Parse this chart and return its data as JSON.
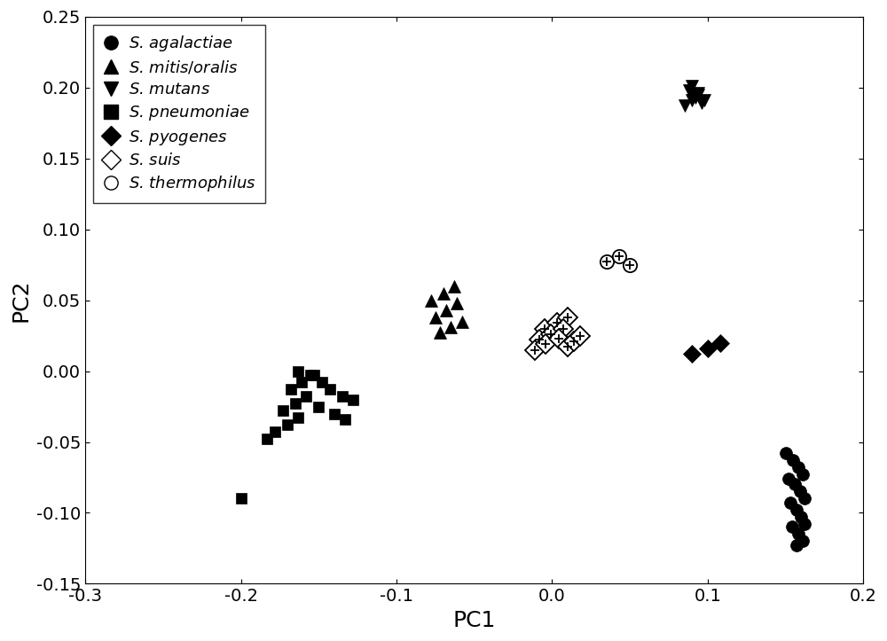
{
  "title": "",
  "xlabel": "PC1",
  "ylabel": "PC2",
  "xlim": [
    -0.3,
    0.2
  ],
  "ylim": [
    -0.15,
    0.25
  ],
  "xticks": [
    -0.3,
    -0.2,
    -0.1,
    0.0,
    0.1,
    0.2
  ],
  "yticks": [
    -0.15,
    -0.1,
    -0.05,
    0.0,
    0.05,
    0.1,
    0.15,
    0.2,
    0.25
  ],
  "background_color": "#ffffff",
  "species": {
    "S. agalactiae": {
      "marker": "o",
      "color": "black",
      "markersize": 10,
      "points": [
        [
          0.15,
          -0.058
        ],
        [
          0.155,
          -0.063
        ],
        [
          0.158,
          -0.068
        ],
        [
          0.161,
          -0.073
        ],
        [
          0.152,
          -0.076
        ],
        [
          0.156,
          -0.08
        ],
        [
          0.159,
          -0.085
        ],
        [
          0.162,
          -0.09
        ],
        [
          0.153,
          -0.093
        ],
        [
          0.157,
          -0.098
        ],
        [
          0.16,
          -0.103
        ],
        [
          0.162,
          -0.108
        ],
        [
          0.154,
          -0.11
        ],
        [
          0.158,
          -0.115
        ],
        [
          0.161,
          -0.12
        ],
        [
          0.157,
          -0.123
        ]
      ]
    },
    "S. mitis/oralis": {
      "marker": "^",
      "color": "black",
      "markersize": 10,
      "points": [
        [
          -0.072,
          0.027
        ],
        [
          -0.065,
          0.031
        ],
        [
          -0.058,
          0.035
        ],
        [
          -0.075,
          0.038
        ],
        [
          -0.068,
          0.043
        ],
        [
          -0.061,
          0.048
        ],
        [
          -0.078,
          0.05
        ],
        [
          -0.07,
          0.055
        ],
        [
          -0.063,
          0.06
        ]
      ]
    },
    "S. mutans": {
      "marker": "v",
      "color": "black",
      "markersize": 10,
      "points": [
        [
          0.085,
          0.187
        ],
        [
          0.09,
          0.191
        ],
        [
          0.094,
          0.195
        ],
        [
          0.088,
          0.198
        ],
        [
          0.092,
          0.193
        ],
        [
          0.096,
          0.189
        ],
        [
          0.09,
          0.201
        ],
        [
          0.094,
          0.196
        ],
        [
          0.098,
          0.191
        ]
      ]
    },
    "S. pneumoniae": {
      "marker": "s",
      "color": "black",
      "markersize": 8,
      "points": [
        [
          -0.178,
          -0.043
        ],
        [
          -0.17,
          -0.038
        ],
        [
          -0.163,
          -0.033
        ],
        [
          -0.173,
          -0.028
        ],
        [
          -0.165,
          -0.023
        ],
        [
          -0.158,
          -0.018
        ],
        [
          -0.168,
          -0.013
        ],
        [
          -0.161,
          -0.008
        ],
        [
          -0.153,
          -0.003
        ],
        [
          -0.163,
          0.0
        ],
        [
          -0.155,
          -0.003
        ],
        [
          -0.148,
          -0.008
        ],
        [
          -0.143,
          -0.013
        ],
        [
          -0.135,
          -0.018
        ],
        [
          -0.128,
          -0.02
        ],
        [
          -0.15,
          -0.025
        ],
        [
          -0.14,
          -0.03
        ],
        [
          -0.133,
          -0.034
        ],
        [
          -0.2,
          -0.09
        ],
        [
          -0.183,
          -0.048
        ]
      ]
    },
    "S. pyogenes": {
      "marker": "D",
      "color": "black",
      "markersize": 10,
      "points": [
        [
          0.09,
          0.012
        ],
        [
          0.1,
          0.016
        ],
        [
          0.108,
          0.02
        ]
      ]
    },
    "S. suis": {
      "marker": "D",
      "open": true,
      "cross": true,
      "markersize": 11,
      "points": [
        [
          -0.005,
          0.03
        ],
        [
          0.003,
          0.034
        ],
        [
          0.01,
          0.038
        ],
        [
          -0.008,
          0.022
        ],
        [
          -0.001,
          0.026
        ],
        [
          0.007,
          0.03
        ],
        [
          -0.011,
          0.015
        ],
        [
          -0.004,
          0.019
        ],
        [
          0.004,
          0.023
        ],
        [
          0.01,
          0.017
        ],
        [
          0.014,
          0.021
        ],
        [
          0.018,
          0.025
        ]
      ]
    },
    "S. thermophilus": {
      "marker": "o",
      "open": true,
      "cross": true,
      "markersize": 11,
      "points": [
        [
          0.035,
          0.077
        ],
        [
          0.043,
          0.081
        ],
        [
          0.05,
          0.075
        ]
      ]
    }
  }
}
